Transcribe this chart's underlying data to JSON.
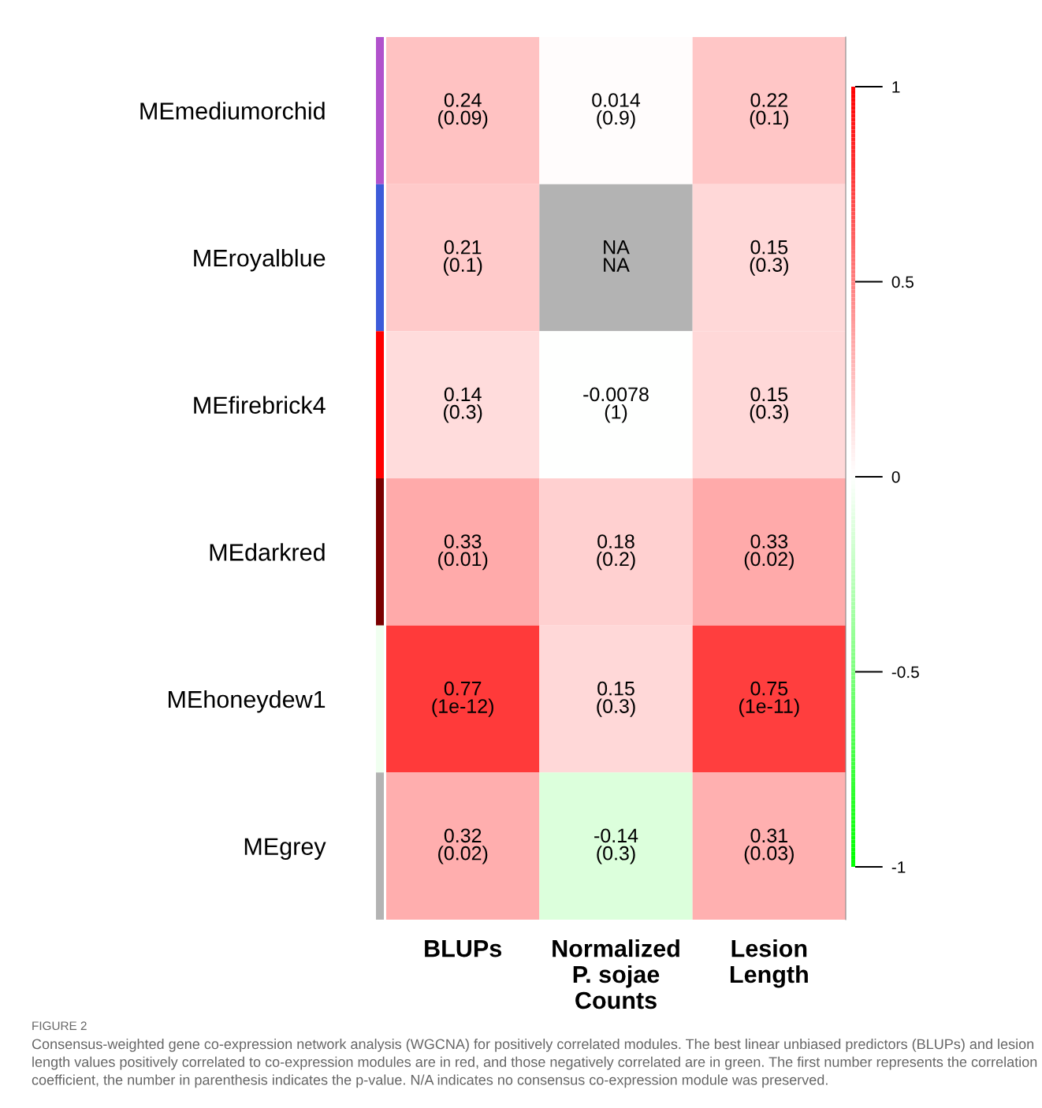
{
  "chart_data": {
    "type": "heatmap",
    "categories": [
      "BLUPs",
      "Normalized\nP. sojae\nCounts",
      "Lesion\nLength"
    ],
    "y_categories": [
      "MEmediumorchid",
      "MEroyalblue",
      "MEfirebrick4",
      "MEdarkred",
      "MEhoneydew1",
      "MEgrey"
    ],
    "cells": [
      [
        0.24,
        0.014,
        0.22
      ],
      [
        0.21,
        null,
        0.15
      ],
      [
        0.14,
        -0.0078,
        0.15
      ],
      [
        0.33,
        0.18,
        0.33
      ],
      [
        0.77,
        0.15,
        0.75
      ],
      [
        0.32,
        -0.14,
        0.31
      ]
    ],
    "cell_labels": [
      [
        "0.24\n(0.09)",
        "0.014\n(0.9)",
        "0.22\n(0.1)"
      ],
      [
        "0.21\n(0.1)",
        "NA\nNA",
        "0.15\n(0.3)"
      ],
      [
        "0.14\n(0.3)",
        "-0.0078\n(1)",
        "0.15\n(0.3)"
      ],
      [
        "0.33\n(0.01)",
        "0.18\n(0.2)",
        "0.33\n(0.02)"
      ],
      [
        "0.77\n(1e-12)",
        "0.15\n(0.3)",
        "0.75\n(1e-11)"
      ],
      [
        "0.32\n(0.02)",
        "-0.14\n(0.3)",
        "0.31\n(0.03)"
      ]
    ],
    "clim": [
      -1,
      1
    ],
    "cticks": [
      {
        "value": 1,
        "label": "1"
      },
      {
        "value": 0.5,
        "label": "0.5"
      },
      {
        "value": 0,
        "label": "0"
      },
      {
        "value": -0.5,
        "label": "-0.5"
      },
      {
        "value": -1,
        "label": "-1"
      }
    ],
    "grid": false,
    "annotations": [
      "FIGURE 2",
      "Consensus-weighted gene co-expression network analysis (WGCNA) for positively correlated modules. The best linear unbiased predictors (BLUPs) and lesion length values positively correlated to co-expression modules are in red, and those negatively correlated are in green. The first number represents the correlation coefficient, the number in parenthesis indicates the p-value. N/A indicates no consensus co-expression module was preserved."
    ]
  }
}
